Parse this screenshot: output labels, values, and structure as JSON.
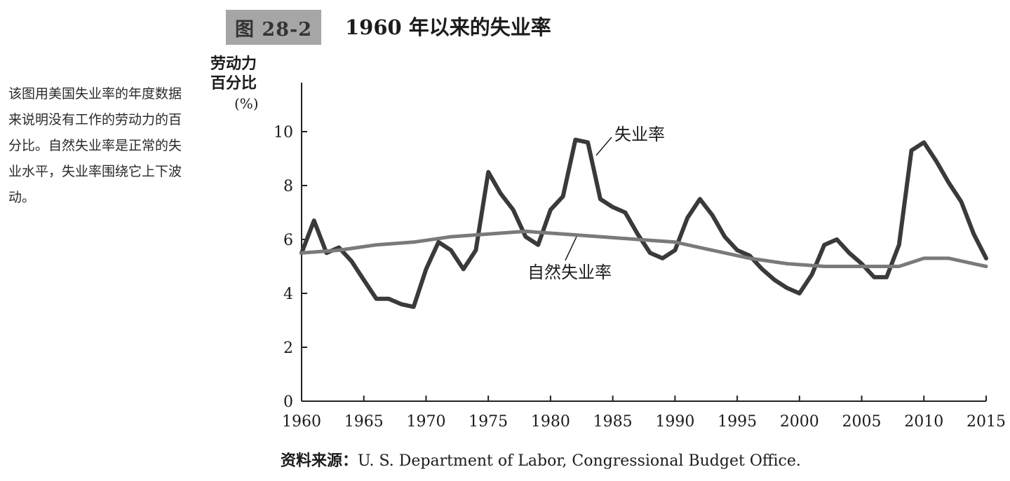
{
  "figure": {
    "badge": "图 28-2",
    "title": "1960 年以来的失业率"
  },
  "caption": "该图用美国失业率的年度数据来说明没有工作的劳动力的百分比。自然失业率是正常的失业水平，失业率围绕它上下波动。",
  "source": {
    "label": "资料来源：",
    "text": "U. S. Department of Labor, Congressional Budget Office."
  },
  "chart_data": {
    "type": "line",
    "title": "1960 年以来的失业率",
    "ylabel_lines": [
      "劳动力",
      "百分比",
      "(%)"
    ],
    "xlabel": "",
    "xlim": [
      1960,
      2015
    ],
    "ylim": [
      0,
      10
    ],
    "x_ticks": [
      1960,
      1965,
      1970,
      1975,
      1980,
      1985,
      1990,
      1995,
      2000,
      2005,
      2010,
      2015
    ],
    "y_ticks": [
      0,
      2,
      4,
      6,
      8,
      10
    ],
    "grid": false,
    "series": [
      {
        "name": "失业率",
        "color": "#3a3a3a",
        "x": [
          1960,
          1961,
          1962,
          1963,
          1964,
          1965,
          1966,
          1967,
          1968,
          1969,
          1970,
          1971,
          1972,
          1973,
          1974,
          1975,
          1976,
          1977,
          1978,
          1979,
          1980,
          1981,
          1982,
          1983,
          1984,
          1985,
          1986,
          1987,
          1988,
          1989,
          1990,
          1991,
          1992,
          1993,
          1994,
          1995,
          1996,
          1997,
          1998,
          1999,
          2000,
          2001,
          2002,
          2003,
          2004,
          2005,
          2006,
          2007,
          2008,
          2009,
          2010,
          2011,
          2012,
          2013,
          2014,
          2015
        ],
        "values": [
          5.5,
          6.7,
          5.5,
          5.7,
          5.2,
          4.5,
          3.8,
          3.8,
          3.6,
          3.5,
          4.9,
          5.9,
          5.6,
          4.9,
          5.6,
          8.5,
          7.7,
          7.1,
          6.1,
          5.8,
          7.1,
          7.6,
          9.7,
          9.6,
          7.5,
          7.2,
          7.0,
          6.2,
          5.5,
          5.3,
          5.6,
          6.8,
          7.5,
          6.9,
          6.1,
          5.6,
          5.4,
          4.9,
          4.5,
          4.2,
          4.0,
          4.7,
          5.8,
          6.0,
          5.5,
          5.1,
          4.6,
          4.6,
          5.8,
          9.3,
          9.6,
          8.9,
          8.1,
          7.4,
          6.2,
          5.3
        ]
      },
      {
        "name": "自然失业率",
        "color": "#7a7a7a",
        "x": [
          1960,
          1963,
          1966,
          1969,
          1972,
          1975,
          1978,
          1981,
          1984,
          1987,
          1990,
          1993,
          1996,
          1999,
          2002,
          2005,
          2008,
          2010,
          2012,
          2015
        ],
        "values": [
          5.5,
          5.6,
          5.8,
          5.9,
          6.1,
          6.2,
          6.3,
          6.2,
          6.1,
          6.0,
          5.9,
          5.6,
          5.3,
          5.1,
          5.0,
          5.0,
          5.0,
          5.3,
          5.3,
          5.0
        ]
      }
    ],
    "annotations": [
      {
        "text": "失业率",
        "series": "失业率"
      },
      {
        "text": "自然失业率",
        "series": "自然失业率"
      }
    ]
  }
}
